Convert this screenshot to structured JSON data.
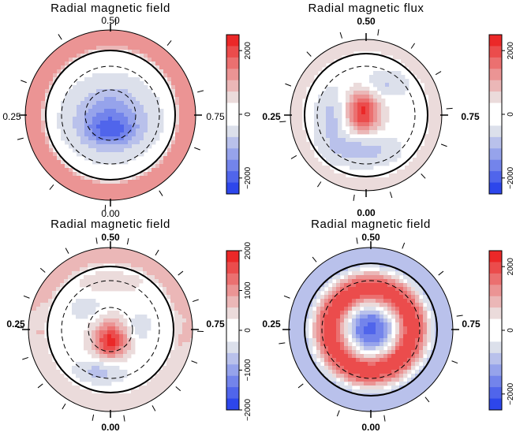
{
  "chart_data": [
    {
      "type": "heatmap",
      "title": "Radial magnetic field",
      "phase_labels": {
        "top": "0.50",
        "bottom": "0.00",
        "left": "0.25",
        "right": "0.75"
      },
      "colorbar": {
        "ticks": [
          2000,
          0,
          -2000
        ],
        "tick_labels": [
          "2000",
          "0",
          "−2000"
        ],
        "range": [
          -2500,
          2500
        ]
      },
      "field": {
        "outer_band": 1200,
        "blobs": [
          {
            "value": -1500,
            "cx": 0.0,
            "cy": -0.05,
            "rx": 0.68,
            "ry": 0.6
          },
          {
            "value": -900,
            "cx": 0.0,
            "cy": -0.25,
            "rx": 0.45,
            "ry": 0.25
          }
        ]
      },
      "ticks_count": 10,
      "bold_labels": false
    },
    {
      "type": "heatmap",
      "title": "Radial magnetic flux",
      "phase_labels": {
        "top": "0.50",
        "bottom": "0.00",
        "left": "0.25",
        "right": "0.75"
      },
      "colorbar": {
        "ticks": [
          2000,
          0,
          -2000
        ],
        "tick_labels": [
          "2000",
          "0",
          "−2000"
        ],
        "range": [
          -2500,
          2500
        ]
      },
      "field": {
        "outer_band": 500,
        "blobs": [
          {
            "value": 2400,
            "cx": -0.05,
            "cy": 0.05,
            "rx": 0.32,
            "ry": 0.42
          },
          {
            "value": -1000,
            "cx": -0.05,
            "cy": -0.55,
            "rx": 0.6,
            "ry": 0.3
          },
          {
            "value": -800,
            "cx": -0.55,
            "cy": -0.05,
            "rx": 0.3,
            "ry": 0.55
          },
          {
            "value": -700,
            "cx": 0.3,
            "cy": 0.5,
            "rx": 0.45,
            "ry": 0.25
          }
        ]
      },
      "ticks_count": 14,
      "bold_labels": true
    },
    {
      "type": "heatmap",
      "title": "Radial magnetic field",
      "phase_labels": {
        "top": "0.50",
        "bottom": "0.00",
        "left": "0.25",
        "right": "0.75"
      },
      "colorbar": {
        "ticks": [
          2000,
          1000,
          0,
          -1000,
          -2000
        ],
        "tick_labels": [
          "2000",
          "1000",
          "0",
          "−1000",
          "−2000"
        ],
        "range": [
          -2000,
          2000
        ]
      },
      "field": {
        "outer_band": 500,
        "blobs": [
          {
            "value": 2000,
            "cx": 0.0,
            "cy": -0.18,
            "rx": 0.32,
            "ry": 0.35
          },
          {
            "value": -700,
            "cx": -0.15,
            "cy": -0.65,
            "rx": 0.45,
            "ry": 0.22
          },
          {
            "value": -500,
            "cx": 0.45,
            "cy": 0.05,
            "rx": 0.2,
            "ry": 0.25
          },
          {
            "value": -500,
            "cx": -0.4,
            "cy": 0.35,
            "rx": 0.25,
            "ry": 0.2
          },
          {
            "value": 500,
            "cx": 0.0,
            "cy": 0.75,
            "rx": 0.55,
            "ry": 0.18
          }
        ]
      },
      "ticks_count": 18,
      "bold_labels": true
    },
    {
      "type": "heatmap",
      "title": "Radial magnetic field",
      "phase_labels": {
        "top": "0.50",
        "bottom": "0.00",
        "left": "0.25",
        "right": "0.75"
      },
      "colorbar": {
        "ticks": [
          2000,
          0,
          -2000
        ],
        "tick_labels": [
          "2000",
          "0",
          "−2000"
        ],
        "range": [
          -2500,
          2500
        ]
      },
      "field": {
        "type": "rings",
        "rings": [
          {
            "r": 0.0,
            "value": -2200
          },
          {
            "r": 0.22,
            "value": -1400
          },
          {
            "r": 0.35,
            "value": 0
          },
          {
            "r": 0.55,
            "value": 2200
          },
          {
            "r": 0.75,
            "value": 1800
          },
          {
            "r": 0.88,
            "value": 400
          },
          {
            "r": 0.95,
            "value": -600
          },
          {
            "r": 1.2,
            "value": -800
          }
        ]
      },
      "ticks_count": 12,
      "bold_labels": true
    }
  ]
}
